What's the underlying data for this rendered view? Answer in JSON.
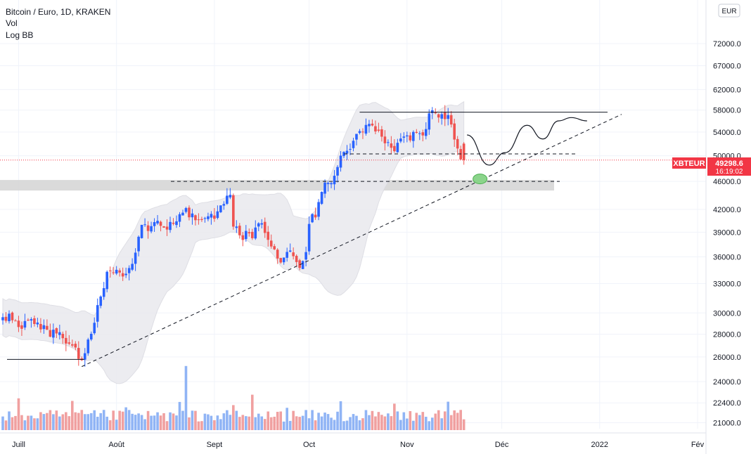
{
  "legend": {
    "symbol": "Bitcoin / Euro, 1D, KRAKEN",
    "vol": "Vol",
    "bb": "Log BB"
  },
  "currency_badge": "EUR",
  "price_tag": {
    "symbol": "XBTEUR",
    "price": "49298.6",
    "time": "16:19:02"
  },
  "colors": {
    "up": "#2962ff",
    "down": "#ef5350",
    "vol_up": "#90b4f5",
    "vol_down": "#f0a0a0",
    "bb_fill": "#e9e9ee",
    "zone": "#d3d3d3",
    "accent": "#f23645",
    "ellipse": "#8bd48b"
  },
  "chart_data": {
    "type": "candlestick",
    "title": "Bitcoin / Euro, 1D, KRAKEN",
    "indicators": [
      "Vol",
      "Log BB"
    ],
    "y_scale": "log",
    "ylim": [
      20500,
      82000
    ],
    "y_ticks": [
      "72000.0",
      "67000.0",
      "62000.0",
      "58000.0",
      "54000.0",
      "50000.0",
      "46000.0",
      "42000.0",
      "39000.0",
      "36000.0",
      "33000.0",
      "30000.0",
      "28000.0",
      "26000.0",
      "24000.0",
      "22400.0",
      "21000.0"
    ],
    "y_tick_values": [
      72000,
      67000,
      62000,
      58000,
      54000,
      50000,
      46000,
      42000,
      39000,
      36000,
      33000,
      30000,
      28000,
      26000,
      24000,
      22400,
      21000
    ],
    "x_ticks": [
      "Juill",
      "Août",
      "Sept",
      "Oct",
      "Nov",
      "Déc",
      "2022",
      "Fév"
    ],
    "x_tick_dates": [
      "2021-07-01",
      "2021-08-01",
      "2021-09-01",
      "2021-10-01",
      "2021-11-01",
      "2021-12-01",
      "2022-01-01",
      "2022-02-01"
    ],
    "xlim": [
      "2021-06-26",
      "2022-02-01"
    ],
    "last_price": 49298.6,
    "keypoints": [
      [
        "2021-06-26",
        29200
      ],
      [
        "2021-06-28",
        29500
      ],
      [
        "2021-07-02",
        28800
      ],
      [
        "2021-07-06",
        29300
      ],
      [
        "2021-07-10",
        28200
      ],
      [
        "2021-07-14",
        27900
      ],
      [
        "2021-07-18",
        26900
      ],
      [
        "2021-07-21",
        25600
      ],
      [
        "2021-07-23",
        27300
      ],
      [
        "2021-07-26",
        30400
      ],
      [
        "2021-07-29",
        33800
      ],
      [
        "2021-08-01",
        34200
      ],
      [
        "2021-08-03",
        33400
      ],
      [
        "2021-08-06",
        35200
      ],
      [
        "2021-08-09",
        39500
      ],
      [
        "2021-08-12",
        39600
      ],
      [
        "2021-08-14",
        40100
      ],
      [
        "2021-08-17",
        39800
      ],
      [
        "2021-08-20",
        41000
      ],
      [
        "2021-08-23",
        42000
      ],
      [
        "2021-08-26",
        40500
      ],
      [
        "2021-08-29",
        41000
      ],
      [
        "2021-09-01",
        40800
      ],
      [
        "2021-09-06",
        44100
      ],
      [
        "2021-09-07",
        39800
      ],
      [
        "2021-09-10",
        38500
      ],
      [
        "2021-09-13",
        38800
      ],
      [
        "2021-09-16",
        40400
      ],
      [
        "2021-09-20",
        36500
      ],
      [
        "2021-09-21",
        35300
      ],
      [
        "2021-09-24",
        36800
      ],
      [
        "2021-09-28",
        35200
      ],
      [
        "2021-09-30",
        36900
      ],
      [
        "2021-10-01",
        40600
      ],
      [
        "2021-10-03",
        41200
      ],
      [
        "2021-10-06",
        46300
      ],
      [
        "2021-10-08",
        46400
      ],
      [
        "2021-10-11",
        49400
      ],
      [
        "2021-10-15",
        52400
      ],
      [
        "2021-10-18",
        54800
      ],
      [
        "2021-10-21",
        55500
      ],
      [
        "2021-10-24",
        53600
      ],
      [
        "2021-10-27",
        50900
      ],
      [
        "2021-10-31",
        53100
      ],
      [
        "2021-11-03",
        53300
      ],
      [
        "2021-11-06",
        53800
      ],
      [
        "2021-11-09",
        58100
      ],
      [
        "2021-11-12",
        56500
      ],
      [
        "2021-11-14",
        57200
      ],
      [
        "2021-11-16",
        52700
      ],
      [
        "2021-11-18",
        50100
      ],
      [
        "2021-11-19",
        49300
      ]
    ],
    "annotations": {
      "resistance_price": 57600,
      "support_price": 50300,
      "zone_price": 46000,
      "trendline": [
        [
          "2021-07-21",
          25200
        ],
        [
          "2021-12-28",
          56200
        ]
      ],
      "projected_path": [
        [
          "2021-11-20",
          53500
        ],
        [
          "2021-11-27",
          48500
        ],
        [
          "2021-12-02",
          50500
        ],
        [
          "2021-12-09",
          55200
        ],
        [
          "2021-12-14",
          52800
        ],
        [
          "2021-12-19",
          56000
        ],
        [
          "2021-12-23",
          56600
        ],
        [
          "2021-12-28",
          56000
        ]
      ],
      "target_ellipse": [
        "2021-11-23",
        46800
      ]
    }
  }
}
